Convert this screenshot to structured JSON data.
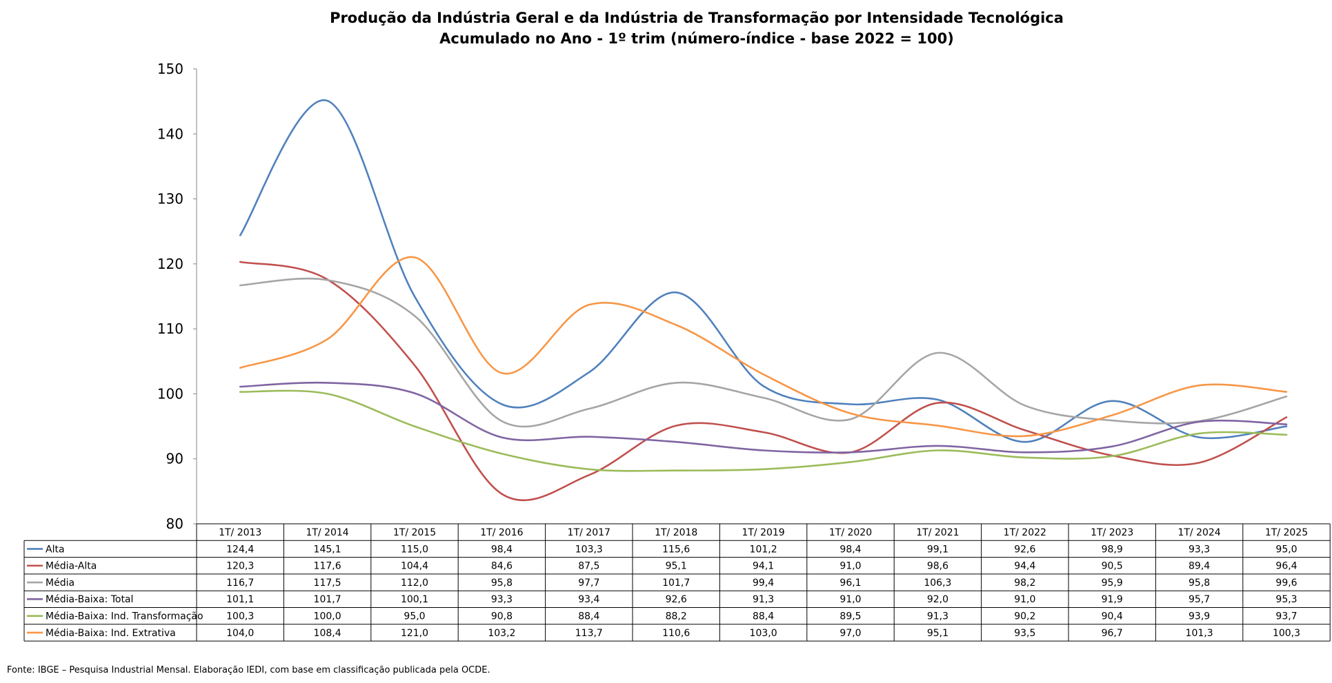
{
  "chart_data": {
    "type": "line",
    "title_lines": [
      "Produção da Indústria Geral e da Indústria de Transformação por Intensidade Tecnológica",
      "Acumulado no Ano - 1º trim (número-índice - base 2022 = 100)"
    ],
    "xlabel": "",
    "ylabel": "",
    "ylim": [
      80,
      150
    ],
    "yticks": [
      "80",
      "90",
      "100",
      "110",
      "120",
      "130",
      "140",
      "150"
    ],
    "categories": [
      "1T/ 2013",
      "1T/ 2014",
      "1T/ 2015",
      "1T/ 2016",
      "1T/ 2017",
      "1T/ 2018",
      "1T/ 2019",
      "1T/ 2020",
      "1T/ 2021",
      "1T/ 2022",
      "1T/ 2023",
      "1T/ 2024",
      "1T/ 2025"
    ],
    "grid": false,
    "legend": "data-table-below",
    "series": [
      {
        "name": "Alta",
        "color": "#4F81BD",
        "values": [
          124.4,
          145.1,
          115.0,
          98.4,
          103.3,
          115.6,
          101.2,
          98.4,
          99.1,
          92.6,
          98.9,
          93.3,
          95.0
        ],
        "labels": [
          "124,4",
          "145,1",
          "115,0",
          "98,4",
          "103,3",
          "115,6",
          "101,2",
          "98,4",
          "99,1",
          "92,6",
          "98,9",
          "93,3",
          "95,0"
        ]
      },
      {
        "name": "Média-Alta",
        "color": "#C0504D",
        "values": [
          120.3,
          117.6,
          104.4,
          84.6,
          87.5,
          95.1,
          94.1,
          91.0,
          98.6,
          94.4,
          90.5,
          89.4,
          96.4
        ],
        "labels": [
          "120,3",
          "117,6",
          "104,4",
          "84,6",
          "87,5",
          "95,1",
          "94,1",
          "91,0",
          "98,6",
          "94,4",
          "90,5",
          "89,4",
          "96,4"
        ]
      },
      {
        "name": "Média",
        "color": "#A5A5A5",
        "values": [
          116.7,
          117.5,
          112.0,
          95.8,
          97.7,
          101.7,
          99.4,
          96.1,
          106.3,
          98.2,
          95.9,
          95.8,
          99.6
        ],
        "labels": [
          "116,7",
          "117,5",
          "112,0",
          "95,8",
          "97,7",
          "101,7",
          "99,4",
          "96,1",
          "106,3",
          "98,2",
          "95,9",
          "95,8",
          "99,6"
        ]
      },
      {
        "name": "Média-Baixa: Total",
        "color": "#8064A2",
        "values": [
          101.1,
          101.7,
          100.1,
          93.3,
          93.4,
          92.6,
          91.3,
          91.0,
          92.0,
          91.0,
          91.9,
          95.7,
          95.3
        ],
        "labels": [
          "101,1",
          "101,7",
          "100,1",
          "93,3",
          "93,4",
          "92,6",
          "91,3",
          "91,0",
          "92,0",
          "91,0",
          "91,9",
          "95,7",
          "95,3"
        ]
      },
      {
        "name": "Média-Baixa: Ind. Transformação",
        "color": "#9BBB59",
        "values": [
          100.3,
          100.0,
          95.0,
          90.8,
          88.4,
          88.2,
          88.4,
          89.5,
          91.3,
          90.2,
          90.4,
          93.9,
          93.7
        ],
        "labels": [
          "100,3",
          "100,0",
          "95,0",
          "90,8",
          "88,4",
          "88,2",
          "88,4",
          "89,5",
          "91,3",
          "90,2",
          "90,4",
          "93,9",
          "93,7"
        ]
      },
      {
        "name": "Média-Baixa: Ind. Extrativa",
        "color": "#F79646",
        "values": [
          104.0,
          108.4,
          121.0,
          103.2,
          113.7,
          110.6,
          103.0,
          97.0,
          95.1,
          93.5,
          96.7,
          101.3,
          100.3
        ],
        "labels": [
          "104,0",
          "108,4",
          "121,0",
          "103,2",
          "113,7",
          "110,6",
          "103,0",
          "97,0",
          "95,1",
          "93,5",
          "96,7",
          "101,3",
          "100,3"
        ]
      }
    ],
    "source": "Fonte: IBGE – Pesquisa Industrial Mensal. Elaboração IEDI, com base em classificação publicada pela OCDE."
  }
}
